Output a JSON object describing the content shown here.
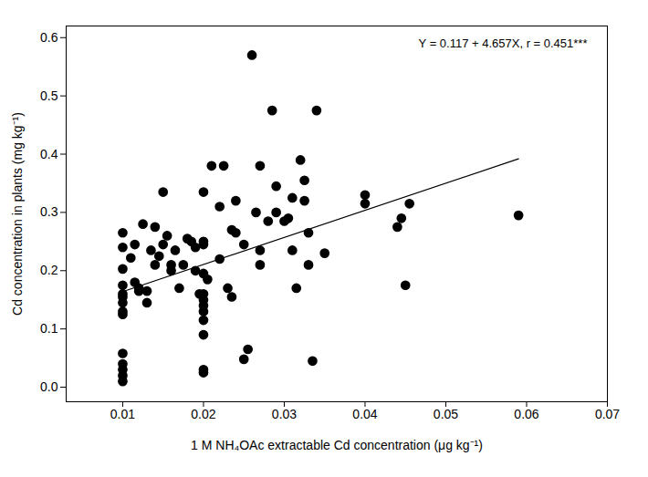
{
  "chart_data": {
    "type": "scatter",
    "x_label": "1 M NH₄OAc extractable Cd concentration (μg kg⁻¹)",
    "y_label": "Cd concentration in plants (mg kg⁻¹)",
    "annotation": "Y = 0.117 + 4.657X, r = 0.451***",
    "xlim": [
      0.003,
      0.07
    ],
    "xticks": [
      0.01,
      0.02,
      0.03,
      0.04,
      0.05,
      0.06,
      0.07
    ],
    "ylim": [
      -0.025,
      0.62
    ],
    "yticks": [
      {
        "value": 0,
        "label": "0.0"
      },
      0.1,
      0.2,
      0.3,
      0.4,
      0.5,
      0.6
    ],
    "grid": false,
    "series": [
      {
        "type": "scatter",
        "marker": "circle",
        "color": "#000000",
        "x": [
          0.01,
          0.01,
          0.01,
          0.01,
          0.01,
          0.01,
          0.01,
          0.01,
          0.01,
          0.01,
          0.01,
          0.01,
          0.01,
          0.01,
          0.011,
          0.0115,
          0.012,
          0.0115,
          0.012,
          0.0125,
          0.013,
          0.013,
          0.0135,
          0.014,
          0.014,
          0.0145,
          0.015,
          0.015,
          0.0155,
          0.016,
          0.016,
          0.0165,
          0.017,
          0.0175,
          0.018,
          0.0185,
          0.019,
          0.019,
          0.0195,
          0.02,
          0.02,
          0.02,
          0.02,
          0.02,
          0.02,
          0.02,
          0.02,
          0.02,
          0.02,
          0.02,
          0.02,
          0.0205,
          0.021,
          0.022,
          0.022,
          0.0225,
          0.023,
          0.0235,
          0.0235,
          0.024,
          0.024,
          0.025,
          0.025,
          0.0255,
          0.026,
          0.0265,
          0.027,
          0.027,
          0.027,
          0.028,
          0.0285,
          0.029,
          0.029,
          0.03,
          0.0305,
          0.031,
          0.031,
          0.0315,
          0.032,
          0.0325,
          0.0325,
          0.033,
          0.033,
          0.0335,
          0.034,
          0.035,
          0.04,
          0.04,
          0.044,
          0.0445,
          0.045,
          0.0455,
          0.059
        ],
        "values": [
          0.203,
          0.24,
          0.265,
          0.175,
          0.16,
          0.155,
          0.145,
          0.13,
          0.125,
          0.058,
          0.04,
          0.03,
          0.02,
          0.01,
          0.222,
          0.245,
          0.165,
          0.18,
          0.17,
          0.28,
          0.145,
          0.165,
          0.235,
          0.21,
          0.275,
          0.225,
          0.335,
          0.245,
          0.26,
          0.2,
          0.21,
          0.235,
          0.17,
          0.21,
          0.255,
          0.25,
          0.24,
          0.2,
          0.16,
          0.335,
          0.245,
          0.25,
          0.195,
          0.16,
          0.15,
          0.14,
          0.13,
          0.115,
          0.09,
          0.03,
          0.025,
          0.185,
          0.38,
          0.31,
          0.22,
          0.38,
          0.17,
          0.155,
          0.27,
          0.32,
          0.265,
          0.245,
          0.048,
          0.065,
          0.57,
          0.3,
          0.38,
          0.235,
          0.21,
          0.285,
          0.475,
          0.3,
          0.345,
          0.285,
          0.29,
          0.325,
          0.235,
          0.17,
          0.39,
          0.355,
          0.32,
          0.265,
          0.21,
          0.045,
          0.475,
          0.23,
          0.33,
          0.315,
          0.275,
          0.29,
          0.175,
          0.315,
          0.295
        ]
      },
      {
        "type": "line",
        "line_style": "solid",
        "color": "#000000",
        "x": [
          0.01,
          0.059
        ],
        "values": [
          0.164,
          0.392
        ]
      }
    ]
  }
}
